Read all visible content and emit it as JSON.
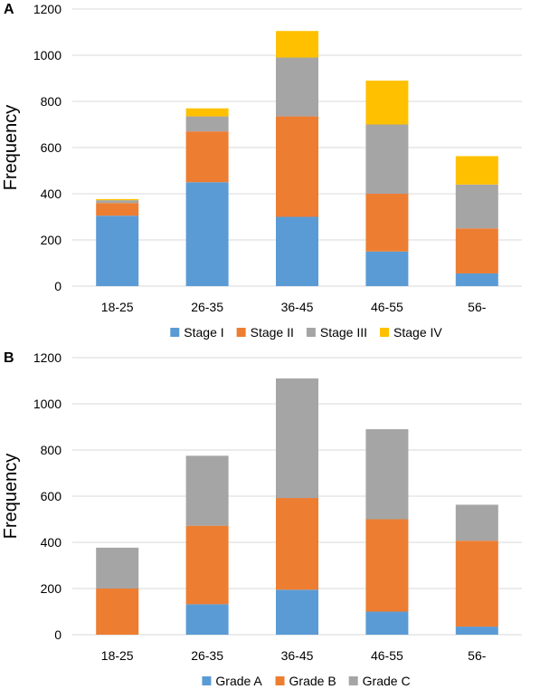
{
  "chart_data": [
    {
      "panel_label": "A",
      "type": "bar",
      "stacked": true,
      "categories": [
        "18-25",
        "26-35",
        "36-45",
        "46-55",
        "56-"
      ],
      "series": [
        {
          "name": "Stage I",
          "color": "#5B9BD5",
          "values": [
            305,
            450,
            300,
            150,
            55
          ]
        },
        {
          "name": "Stage II",
          "color": "#ED7D31",
          "values": [
            55,
            220,
            435,
            250,
            195
          ]
        },
        {
          "name": "Stage III",
          "color": "#A5A5A5",
          "values": [
            12,
            65,
            255,
            300,
            190
          ]
        },
        {
          "name": "Stage IV",
          "color": "#FFC000",
          "values": [
            5,
            35,
            115,
            190,
            123
          ]
        }
      ],
      "ylabel": "Frequency",
      "ylim": [
        0,
        1200
      ],
      "yticks": [
        0,
        200,
        400,
        600,
        800,
        1000,
        1200
      ],
      "grid": true,
      "legend_position": "bottom"
    },
    {
      "panel_label": "B",
      "type": "bar",
      "stacked": true,
      "categories": [
        "18-25",
        "26-35",
        "36-45",
        "46-55",
        "56-"
      ],
      "series": [
        {
          "name": "Grade A",
          "color": "#5B9BD5",
          "values": [
            0,
            132,
            195,
            100,
            35
          ]
        },
        {
          "name": "Grade B",
          "color": "#ED7D31",
          "values": [
            200,
            340,
            397,
            400,
            372
          ]
        },
        {
          "name": "Grade C",
          "color": "#A5A5A5",
          "values": [
            177,
            303,
            518,
            390,
            156
          ]
        }
      ],
      "ylabel": "Frequency",
      "ylim": [
        0,
        1200
      ],
      "yticks": [
        0,
        200,
        400,
        600,
        800,
        1000,
        1200
      ],
      "grid": true,
      "legend_position": "bottom"
    }
  ]
}
